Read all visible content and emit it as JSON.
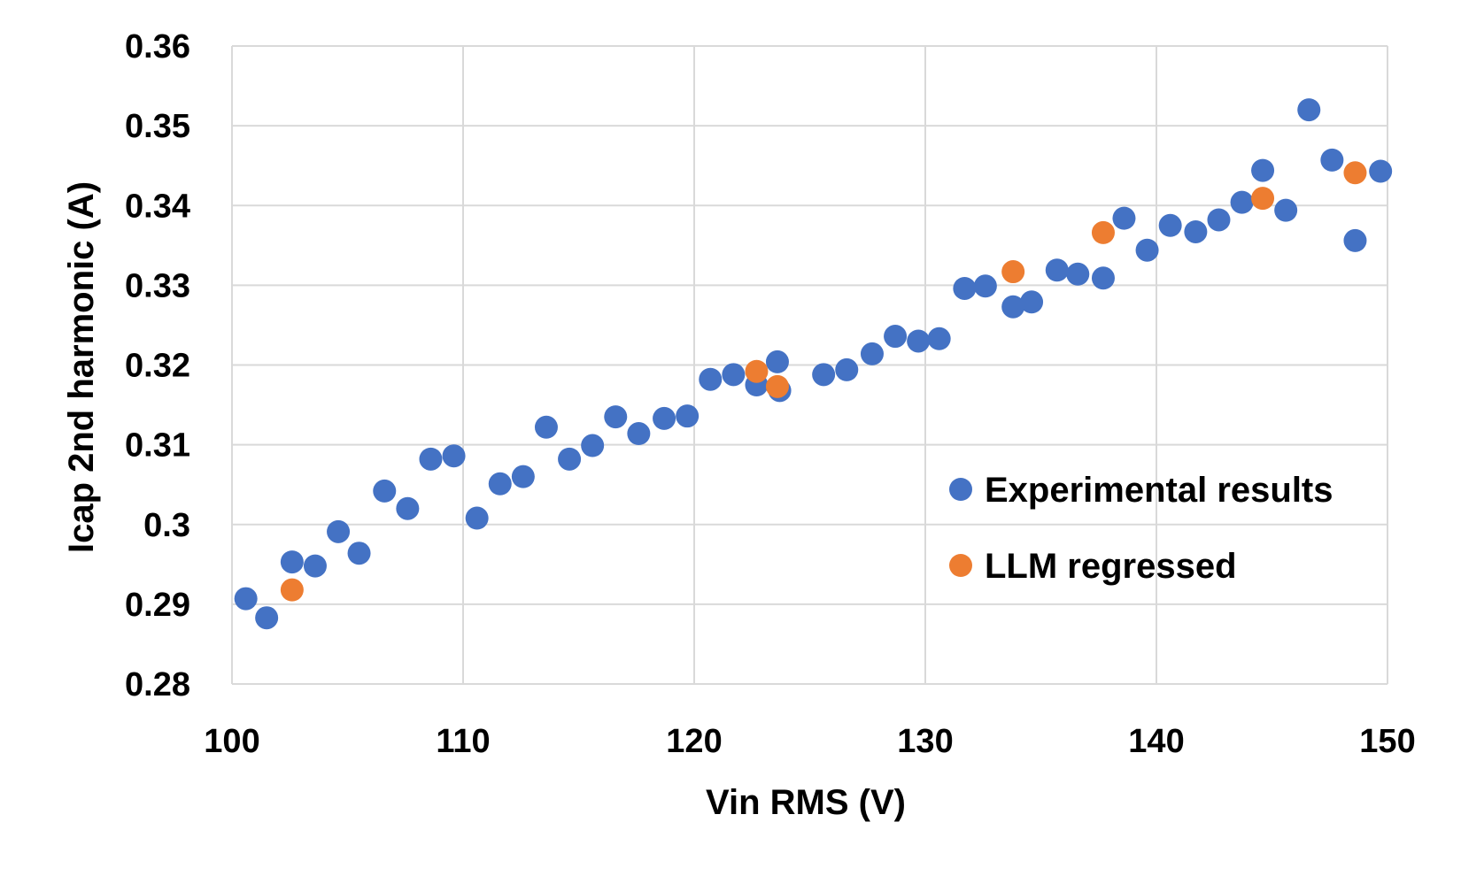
{
  "chart_data": {
    "type": "scatter",
    "title": "",
    "xlabel": "Vin RMS (V)",
    "ylabel": "Icap 2nd harmonic (A)",
    "xlim": [
      100,
      150
    ],
    "ylim": [
      0.28,
      0.36
    ],
    "x_ticks": [
      100,
      110,
      120,
      130,
      140,
      150
    ],
    "x_tick_labels": [
      "100",
      "110",
      "120",
      "130",
      "140",
      "150"
    ],
    "y_ticks": [
      0.28,
      0.29,
      0.3,
      0.31,
      0.32,
      0.33,
      0.34,
      0.35,
      0.36
    ],
    "y_tick_labels": [
      "0.28",
      "0.29",
      "0.3",
      "0.31",
      "0.32",
      "0.33",
      "0.34",
      "0.35",
      "0.36"
    ],
    "grid": true,
    "legend_position": "bottom-right inside",
    "series": [
      {
        "name": "Experimental results",
        "color": "#4472C4",
        "points": [
          [
            100.6,
            0.2907
          ],
          [
            101.5,
            0.2883
          ],
          [
            102.6,
            0.2953
          ],
          [
            103.6,
            0.2948
          ],
          [
            104.6,
            0.2991
          ],
          [
            105.5,
            0.2964
          ],
          [
            106.6,
            0.3042
          ],
          [
            107.6,
            0.302
          ],
          [
            108.6,
            0.3082
          ],
          [
            109.6,
            0.3086
          ],
          [
            110.6,
            0.3008
          ],
          [
            111.6,
            0.3051
          ],
          [
            112.6,
            0.306
          ],
          [
            113.6,
            0.3122
          ],
          [
            114.6,
            0.3082
          ],
          [
            115.6,
            0.3099
          ],
          [
            116.6,
            0.3135
          ],
          [
            117.6,
            0.3114
          ],
          [
            118.7,
            0.3133
          ],
          [
            119.7,
            0.3136
          ],
          [
            120.7,
            0.3182
          ],
          [
            121.7,
            0.3188
          ],
          [
            122.7,
            0.3175
          ],
          [
            123.6,
            0.3204
          ],
          [
            123.7,
            0.3168
          ],
          [
            125.6,
            0.3188
          ],
          [
            126.6,
            0.3194
          ],
          [
            127.7,
            0.3214
          ],
          [
            128.7,
            0.3236
          ],
          [
            129.7,
            0.323
          ],
          [
            130.6,
            0.3233
          ],
          [
            131.7,
            0.3296
          ],
          [
            132.6,
            0.3299
          ],
          [
            133.8,
            0.3273
          ],
          [
            134.6,
            0.3279
          ],
          [
            135.7,
            0.3319
          ],
          [
            136.6,
            0.3314
          ],
          [
            137.7,
            0.3309
          ],
          [
            138.6,
            0.3384
          ],
          [
            139.6,
            0.3344
          ],
          [
            140.6,
            0.3375
          ],
          [
            141.7,
            0.3367
          ],
          [
            142.7,
            0.3382
          ],
          [
            143.7,
            0.3404
          ],
          [
            144.6,
            0.3444
          ],
          [
            145.6,
            0.3394
          ],
          [
            146.6,
            0.352
          ],
          [
            147.6,
            0.3457
          ],
          [
            148.6,
            0.3356
          ],
          [
            149.7,
            0.3443
          ]
        ]
      },
      {
        "name": "LLM regressed",
        "color": "#ED7D31",
        "points": [
          [
            102.6,
            0.2918
          ],
          [
            122.7,
            0.3192
          ],
          [
            123.6,
            0.3173
          ],
          [
            133.8,
            0.3317
          ],
          [
            137.7,
            0.3366
          ],
          [
            144.6,
            0.3409
          ],
          [
            148.6,
            0.3441
          ]
        ]
      }
    ]
  }
}
